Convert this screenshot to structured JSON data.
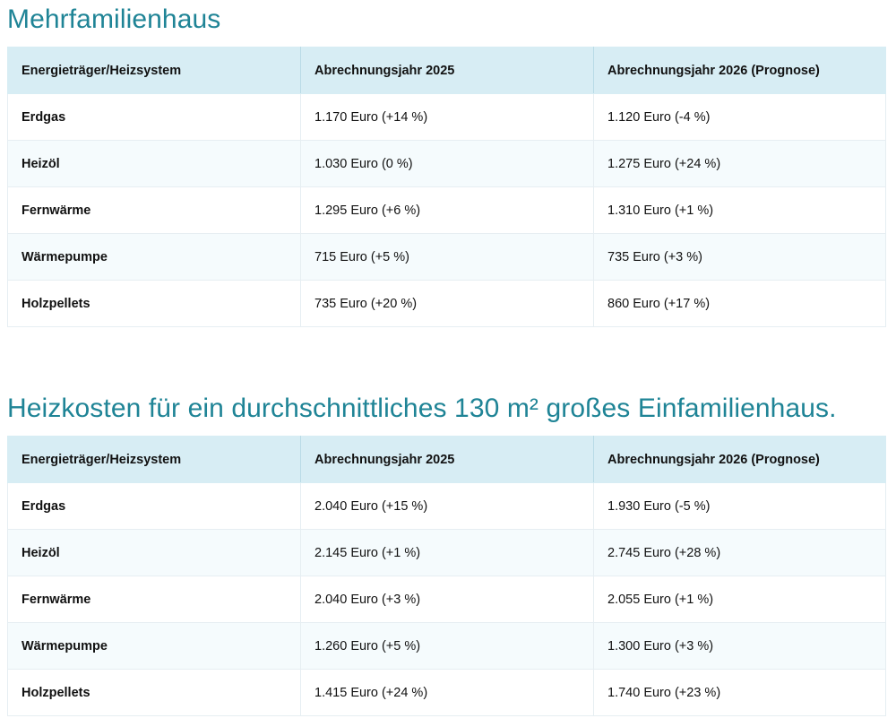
{
  "sections": [
    {
      "title": "Mehrfamilienhaus",
      "headers": [
        "Energieträger/Heizsystem",
        "Abrechnungsjahr 2025",
        "Abrechnungsjahr 2026 (Prognose)"
      ],
      "rows": [
        [
          "Erdgas",
          "1.170 Euro (+14 %)",
          "1.120 Euro (-4 %)"
        ],
        [
          "Heizöl",
          "1.030 Euro (0 %)",
          "1.275 Euro (+24 %)"
        ],
        [
          "Fernwärme",
          "1.295 Euro (+6 %)",
          "1.310 Euro (+1 %)"
        ],
        [
          "Wärmepumpe",
          "715 Euro (+5 %)",
          "735 Euro (+3 %)"
        ],
        [
          "Holzpellets",
          "735 Euro (+20 %)",
          "860 Euro (+17 %)"
        ]
      ]
    },
    {
      "title": "Heizkosten für ein durchschnittliches 130 m² großes Einfamilienhaus.",
      "headers": [
        "Energieträger/Heizsystem",
        "Abrechnungsjahr 2025",
        "Abrechnungsjahr 2026 (Prognose)"
      ],
      "rows": [
        [
          "Erdgas",
          "2.040 Euro (+15 %)",
          "1.930 Euro (-5 %)"
        ],
        [
          "Heizöl",
          "2.145 Euro (+1 %)",
          "2.745 Euro (+28 %)"
        ],
        [
          "Fernwärme",
          "2.040 Euro (+3 %)",
          "2.055 Euro (+1 %)"
        ],
        [
          "Wärmepumpe",
          "1.260 Euro (+5 %)",
          "1.300 Euro (+3 %)"
        ],
        [
          "Holzpellets",
          "1.415 Euro (+24 %)",
          "1.740 Euro (+23 %)"
        ]
      ]
    }
  ],
  "colors": {
    "title": "#1f8496",
    "header_bg": "#d7edf4",
    "row_alt_bg": "#f5fbfd"
  }
}
